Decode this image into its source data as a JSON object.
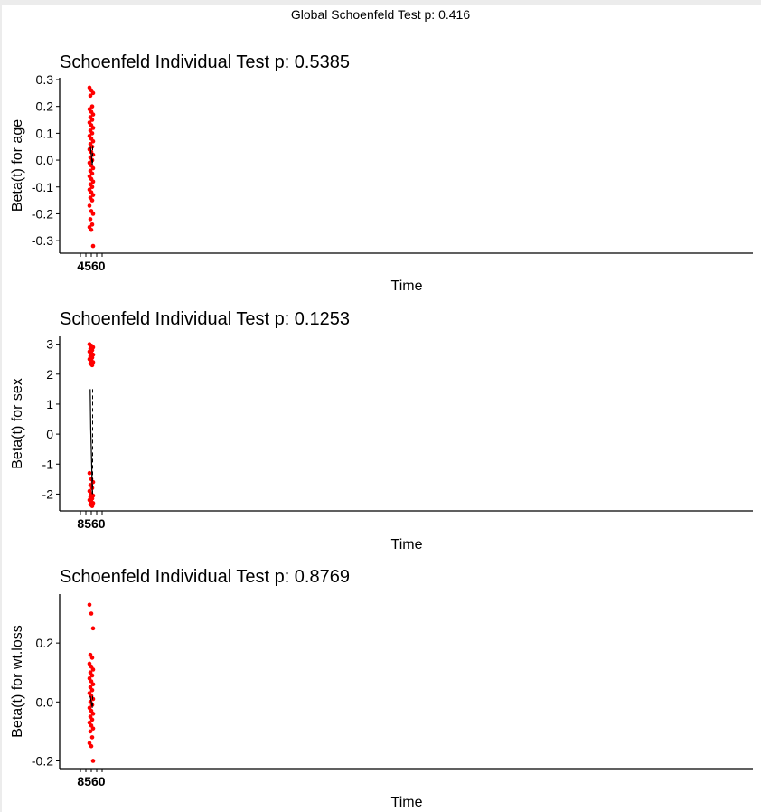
{
  "global_title": "Global Schoenfeld Test p: 0.416",
  "colors": {
    "points": "#ff0000",
    "line": "#000000"
  },
  "chart_data": [
    {
      "type": "scatter",
      "title": "Schoenfeld Individual Test p: 0.5385",
      "xlabel": "Time",
      "ylabel": "Beta(t) for age",
      "yticks": [
        "0.3",
        "0.2",
        "0.1",
        "0.0",
        "-0.1",
        "-0.2",
        "-0.3"
      ],
      "yticks_values": [
        0.3,
        0.2,
        0.1,
        0.0,
        -0.1,
        -0.2,
        -0.3
      ],
      "ylim": [
        -0.34,
        0.3
      ],
      "xtick_label": "4560",
      "x_cluster": 0,
      "y": [
        0.27,
        0.26,
        0.25,
        0.24,
        0.2,
        0.19,
        0.18,
        0.17,
        0.16,
        0.15,
        0.14,
        0.13,
        0.12,
        0.11,
        0.1,
        0.09,
        0.08,
        0.07,
        0.06,
        0.05,
        0.04,
        0.03,
        0.02,
        0.01,
        0.0,
        -0.01,
        -0.02,
        -0.03,
        -0.04,
        -0.05,
        -0.06,
        -0.07,
        -0.08,
        -0.09,
        -0.1,
        -0.11,
        -0.12,
        -0.13,
        -0.14,
        -0.15,
        -0.17,
        -0.19,
        -0.2,
        -0.22,
        -0.24,
        -0.25,
        -0.26,
        -0.32
      ],
      "smooth": [
        0.05,
        0.04,
        0.02,
        0.0,
        -0.02
      ]
    },
    {
      "type": "scatter",
      "title": "Schoenfeld Individual Test p: 0.1253",
      "xlabel": "Time",
      "ylabel": "Beta(t) for sex",
      "yticks": [
        "3",
        "2",
        "1",
        "0",
        "-1",
        "-2"
      ],
      "yticks_values": [
        3,
        2,
        1,
        0,
        -1,
        -2
      ],
      "ylim": [
        -2.5,
        3.2
      ],
      "xtick_label": "8560",
      "x_cluster": 0,
      "y": [
        3.0,
        2.95,
        2.9,
        2.85,
        2.8,
        2.75,
        2.7,
        2.65,
        2.6,
        2.55,
        2.5,
        2.45,
        2.4,
        2.35,
        2.3,
        -1.3,
        -1.5,
        -1.6,
        -1.7,
        -1.8,
        -1.9,
        -2.0,
        -2.05,
        -2.1,
        -2.15,
        -2.2,
        -2.25,
        -2.3,
        -2.35,
        -2.4
      ],
      "smooth": [
        1.5,
        0.2,
        -0.5,
        -1.2,
        -2.0
      ]
    },
    {
      "type": "scatter",
      "title": "Schoenfeld Individual Test p: 0.8769",
      "xlabel": "Time",
      "ylabel": "Beta(t) for wt.loss",
      "yticks": [
        "0.2",
        "0.0",
        "-0.2"
      ],
      "yticks_values": [
        0.2,
        0.0,
        -0.2
      ],
      "ylim": [
        -0.22,
        0.36
      ],
      "xtick_label": "8560",
      "x_cluster": 0,
      "y": [
        0.33,
        0.3,
        0.25,
        0.16,
        0.15,
        0.13,
        0.12,
        0.11,
        0.1,
        0.09,
        0.08,
        0.07,
        0.06,
        0.05,
        0.04,
        0.03,
        0.02,
        0.01,
        0.0,
        -0.01,
        -0.02,
        -0.03,
        -0.04,
        -0.05,
        -0.06,
        -0.07,
        -0.08,
        -0.09,
        -0.1,
        -0.12,
        -0.14,
        -0.15,
        -0.2
      ],
      "smooth": [
        0.02,
        0.01,
        0.0,
        -0.01,
        -0.02
      ]
    }
  ]
}
